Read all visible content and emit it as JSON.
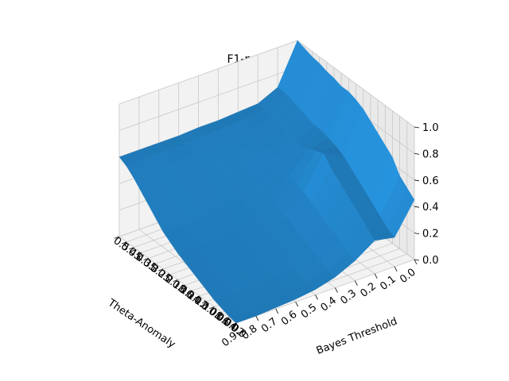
{
  "chart_data": {
    "type": "surface",
    "title": "F1-measure",
    "xlabel": "Theta-Anomaly",
    "ylabel": "Bayes Threshold",
    "zlabel": "",
    "xticks": [
      "0.5",
      "0.45",
      "0.4",
      "0.35",
      "0.3",
      "0.25",
      "0.2",
      "0.18",
      "0.16",
      "0.14",
      "0.12",
      "0.1",
      "0.08",
      "0.06",
      "0.04",
      "0.02",
      "0.0"
    ],
    "yticks": [
      "0.9",
      "0.8",
      "0.7",
      "0.6",
      "0.5",
      "0.4",
      "0.3",
      "0.2",
      "0.1",
      "0.0"
    ],
    "zticks": [
      "0.0",
      "0.2",
      "0.4",
      "0.6",
      "0.8",
      "1.0"
    ],
    "zlim": [
      0,
      1
    ],
    "surface_color": "#1f77b4",
    "grid": true,
    "rows": [
      {
        "theta": "0.5",
        "values": [
          0.6,
          0.6,
          0.6,
          0.6,
          0.61,
          0.61,
          0.62,
          0.63,
          0.7,
          1.0
        ]
      },
      {
        "theta": "0.45",
        "values": [
          0.57,
          0.58,
          0.58,
          0.58,
          0.59,
          0.6,
          0.61,
          0.62,
          0.7,
          0.98
        ]
      },
      {
        "theta": "0.4",
        "values": [
          0.52,
          0.52,
          0.53,
          0.53,
          0.54,
          0.55,
          0.57,
          0.6,
          0.68,
          0.96
        ]
      },
      {
        "theta": "0.35",
        "values": [
          0.46,
          0.46,
          0.47,
          0.47,
          0.48,
          0.5,
          0.53,
          0.58,
          0.66,
          0.95
        ]
      },
      {
        "theta": "0.3",
        "values": [
          0.4,
          0.4,
          0.41,
          0.41,
          0.42,
          0.45,
          0.5,
          0.56,
          0.64,
          0.93
        ]
      },
      {
        "theta": "0.25",
        "values": [
          0.34,
          0.34,
          0.35,
          0.35,
          0.37,
          0.4,
          0.46,
          0.55,
          0.62,
          0.92
        ]
      },
      {
        "theta": "0.2",
        "values": [
          0.28,
          0.28,
          0.29,
          0.3,
          0.32,
          0.36,
          0.43,
          0.55,
          0.62,
          0.9
        ]
      },
      {
        "theta": "0.18",
        "values": [
          0.24,
          0.24,
          0.25,
          0.26,
          0.28,
          0.33,
          0.42,
          0.57,
          0.6,
          0.9
        ]
      },
      {
        "theta": "0.16",
        "values": [
          0.2,
          0.2,
          0.21,
          0.22,
          0.25,
          0.3,
          0.4,
          0.6,
          0.58,
          0.88
        ]
      },
      {
        "theta": "0.14",
        "values": [
          0.17,
          0.17,
          0.18,
          0.19,
          0.22,
          0.27,
          0.38,
          0.62,
          0.55,
          0.85
        ]
      },
      {
        "theta": "0.12",
        "values": [
          0.14,
          0.14,
          0.15,
          0.16,
          0.19,
          0.24,
          0.35,
          0.55,
          0.5,
          0.8
        ]
      },
      {
        "theta": "0.1",
        "values": [
          0.11,
          0.11,
          0.12,
          0.13,
          0.16,
          0.21,
          0.32,
          0.5,
          0.45,
          0.75
        ]
      },
      {
        "theta": "0.08",
        "values": [
          0.08,
          0.08,
          0.09,
          0.1,
          0.13,
          0.18,
          0.28,
          0.45,
          0.4,
          0.7
        ]
      },
      {
        "theta": "0.06",
        "values": [
          0.05,
          0.05,
          0.06,
          0.07,
          0.1,
          0.15,
          0.25,
          0.4,
          0.35,
          0.65
        ]
      },
      {
        "theta": "0.04",
        "values": [
          0.03,
          0.03,
          0.04,
          0.05,
          0.07,
          0.12,
          0.22,
          0.35,
          0.3,
          0.55
        ]
      },
      {
        "theta": "0.02",
        "values": [
          0.01,
          0.01,
          0.02,
          0.03,
          0.05,
          0.09,
          0.18,
          0.3,
          0.25,
          0.5
        ]
      },
      {
        "theta": "0.0",
        "values": [
          0.0,
          0.0,
          0.01,
          0.02,
          0.04,
          0.08,
          0.15,
          0.25,
          0.22,
          0.45
        ]
      }
    ]
  }
}
